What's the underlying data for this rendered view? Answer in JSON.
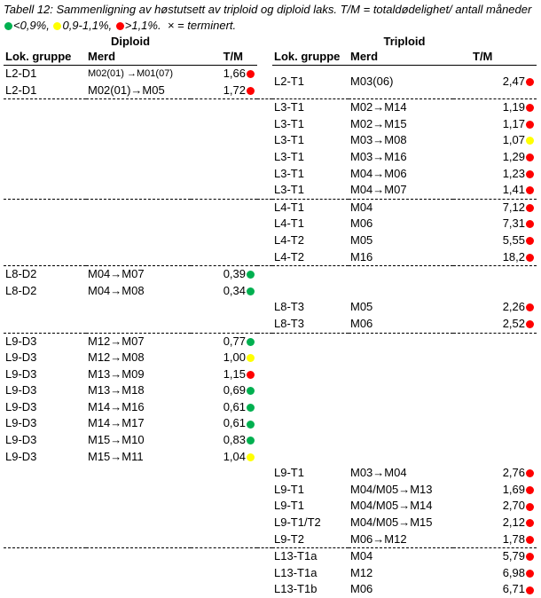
{
  "caption": {
    "text_before": "Tabell 12: Sammenligning av høstutsett av triploid og diploid laks. T/M = totaldødelighet/ antall måneder ",
    "legend_green": "<0,9%,",
    "legend_yellow": "0,9-1,1%,",
    "legend_red": ">1,1%.",
    "text_after": "  × = terminert.",
    "colors": {
      "green": "#00b050",
      "yellow": "#ffff00",
      "red": "#ff0000"
    }
  },
  "headers": {
    "diploid": "Diploid",
    "triploid": "Triploid",
    "lok_gruppe": "Lok. gruppe",
    "merd": "Merd",
    "tm": "T/M"
  },
  "groups": [
    {
      "diploid": [
        {
          "lok": "L2-D1",
          "merd": "M02(01) →M01(07)",
          "tm": "1,66",
          "status": "red",
          "small": true
        },
        {
          "lok": "L2-D1",
          "merd": "M02(01)→M05",
          "tm": "1,72",
          "status": "red"
        }
      ],
      "triploid": [
        {
          "lok": "L2-T1",
          "merd": "M03(06)",
          "tm": "2,47",
          "status": "red"
        }
      ]
    },
    {
      "diploid": [],
      "triploid": [
        {
          "lok": "L3-T1",
          "merd": "M02→M14",
          "tm": "1,19",
          "status": "red"
        },
        {
          "lok": "L3-T1",
          "merd": "M02→M15",
          "tm": "1,17",
          "status": "red"
        },
        {
          "lok": "L3-T1",
          "merd": "M03→M08",
          "tm": "1,07",
          "status": "yellow"
        },
        {
          "lok": "L3-T1",
          "merd": "M03→M16",
          "tm": "1,29",
          "status": "red"
        },
        {
          "lok": "L3-T1",
          "merd": "M04→M06",
          "tm": "1,23",
          "status": "red"
        },
        {
          "lok": "L3-T1",
          "merd": "M04→M07",
          "tm": "1,41",
          "status": "red"
        }
      ]
    },
    {
      "diploid": [],
      "triploid": [
        {
          "lok": "L4-T1",
          "merd": "M04",
          "tm": "7,12",
          "status": "red"
        },
        {
          "lok": "L4-T1",
          "merd": "M06",
          "tm": "7,31",
          "status": "red"
        },
        {
          "lok": "L4-T2",
          "merd": "M05",
          "tm": "5,55",
          "status": "red"
        },
        {
          "lok": "L4-T2",
          "merd": "M16",
          "tm": "18,2",
          "status": "red"
        }
      ]
    },
    {
      "diploid": [
        {
          "lok": "L8-D2",
          "merd": "M04→M07",
          "tm": "0,39",
          "status": "green"
        },
        {
          "lok": "L8-D2",
          "merd": "M04→M08",
          "tm": "0,34",
          "status": "green"
        }
      ],
      "triploid": [
        {
          "lok": "L8-T3",
          "merd": "M05",
          "tm": "2,26",
          "status": "red"
        },
        {
          "lok": "L8-T3",
          "merd": "M06",
          "tm": "2,52",
          "status": "red"
        }
      ]
    },
    {
      "diploid": [
        {
          "lok": "L9-D3",
          "merd": "M12→M07",
          "tm": "0,77",
          "status": "green"
        },
        {
          "lok": "L9-D3",
          "merd": "M12→M08",
          "tm": "1,00",
          "status": "yellow"
        },
        {
          "lok": "L9-D3",
          "merd": "M13→M09",
          "tm": "1,15",
          "status": "red"
        },
        {
          "lok": "L9-D3",
          "merd": "M13→M18",
          "tm": "0,69",
          "status": "green"
        },
        {
          "lok": "L9-D3",
          "merd": "M14→M16",
          "tm": "0,61",
          "status": "green"
        },
        {
          "lok": "L9-D3",
          "merd": "M14→M17",
          "tm": "0,61",
          "status": "green"
        },
        {
          "lok": "L9-D3",
          "merd": "M15→M10",
          "tm": "0,83",
          "status": "green"
        },
        {
          "lok": "L9-D3",
          "merd": "M15→M11",
          "tm": "1,04",
          "status": "yellow"
        }
      ],
      "triploid": [
        {
          "lok": "L9-T1",
          "merd": "M03→M04",
          "tm": "2,76",
          "status": "red"
        },
        {
          "lok": "L9-T1",
          "merd": "M04/M05→M13",
          "tm": "1,69",
          "status": "red"
        },
        {
          "lok": "L9-T1",
          "merd": "M04/M05→M14",
          "tm": "2,70",
          "status": "red"
        },
        {
          "lok": "L9-T1/T2",
          "merd": "M04/M05→M15",
          "tm": "2,12",
          "status": "red"
        },
        {
          "lok": "L9-T2",
          "merd": "M06→M12",
          "tm": "1,78",
          "status": "red"
        }
      ]
    },
    {
      "diploid": [],
      "triploid": [
        {
          "lok": "L13-T1a",
          "merd": "M04",
          "tm": "5,79",
          "status": "red"
        },
        {
          "lok": "L13-T1a",
          "merd": "M12",
          "tm": "6,98",
          "status": "red"
        },
        {
          "lok": "L13-T1b",
          "merd": "M06",
          "tm": "6,71",
          "status": "red"
        }
      ]
    }
  ]
}
